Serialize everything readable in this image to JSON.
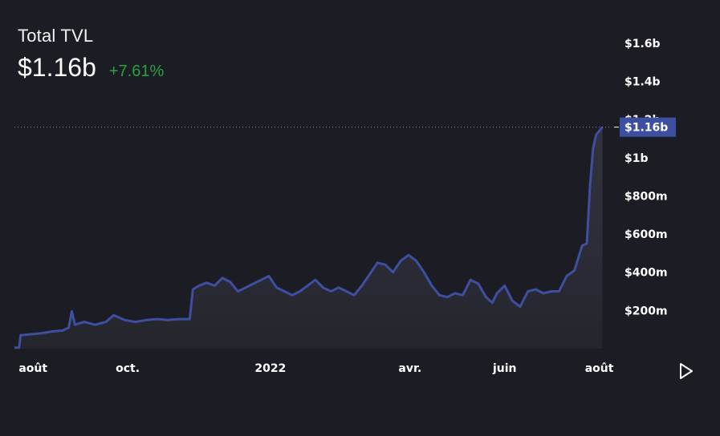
{
  "header": {
    "title": "Total TVL",
    "value": "$1.16b",
    "change": "+7.61%"
  },
  "colors": {
    "background": "#1c1d24",
    "line": "#3d4fa0",
    "change_positive": "#27a141",
    "crosshair_label_bg": "#3d4fa0"
  },
  "controls": {
    "play_icon": "play-icon"
  },
  "chart_data": {
    "type": "area",
    "title": "Total TVL",
    "xlabel": "",
    "ylabel": "",
    "ylim": [
      0,
      1700000000
    ],
    "yticks": [
      {
        "value": 200000000,
        "label": "$200m"
      },
      {
        "value": 400000000,
        "label": "$400m"
      },
      {
        "value": 600000000,
        "label": "$600m"
      },
      {
        "value": 800000000,
        "label": "$800m"
      },
      {
        "value": 1000000000,
        "label": "$1b"
      },
      {
        "value": 1200000000,
        "label": "$1.2b"
      },
      {
        "value": 1400000000,
        "label": "$1.4b"
      },
      {
        "value": 1600000000,
        "label": "$1.6b"
      }
    ],
    "xlim": [
      "2021-07-20",
      "2022-08-10"
    ],
    "xticks": [
      {
        "date": "2021-08-01",
        "label": "août"
      },
      {
        "date": "2021-10-01",
        "label": "oct."
      },
      {
        "date": "2022-01-01",
        "label": "2022"
      },
      {
        "date": "2022-04-01",
        "label": "avr."
      },
      {
        "date": "2022-06-01",
        "label": "juin"
      },
      {
        "date": "2022-08-01",
        "label": "août"
      }
    ],
    "current_value": 1160000000,
    "current_label": "$1.16b",
    "grid": false,
    "series": [
      {
        "points": [
          [
            "2021-07-20",
            5000000
          ],
          [
            "2021-07-23",
            5000000
          ],
          [
            "2021-07-24",
            70000000
          ],
          [
            "2021-07-30",
            75000000
          ],
          [
            "2021-08-06",
            80000000
          ],
          [
            "2021-08-13",
            90000000
          ],
          [
            "2021-08-20",
            95000000
          ],
          [
            "2021-08-24",
            110000000
          ],
          [
            "2021-08-26",
            195000000
          ],
          [
            "2021-08-28",
            125000000
          ],
          [
            "2021-09-03",
            140000000
          ],
          [
            "2021-09-10",
            125000000
          ],
          [
            "2021-09-17",
            140000000
          ],
          [
            "2021-09-22",
            175000000
          ],
          [
            "2021-09-29",
            150000000
          ],
          [
            "2021-10-06",
            140000000
          ],
          [
            "2021-10-13",
            150000000
          ],
          [
            "2021-10-20",
            155000000
          ],
          [
            "2021-10-27",
            150000000
          ],
          [
            "2021-11-03",
            155000000
          ],
          [
            "2021-11-10",
            155000000
          ],
          [
            "2021-11-12",
            310000000
          ],
          [
            "2021-11-16",
            330000000
          ],
          [
            "2021-11-21",
            345000000
          ],
          [
            "2021-11-26",
            330000000
          ],
          [
            "2021-12-01",
            370000000
          ],
          [
            "2021-12-06",
            350000000
          ],
          [
            "2021-12-11",
            300000000
          ],
          [
            "2021-12-16",
            320000000
          ],
          [
            "2021-12-21",
            340000000
          ],
          [
            "2021-12-26",
            360000000
          ],
          [
            "2021-12-31",
            380000000
          ],
          [
            "2022-01-05",
            320000000
          ],
          [
            "2022-01-10",
            300000000
          ],
          [
            "2022-01-15",
            280000000
          ],
          [
            "2022-01-20",
            300000000
          ],
          [
            "2022-01-25",
            330000000
          ],
          [
            "2022-01-30",
            360000000
          ],
          [
            "2022-02-04",
            320000000
          ],
          [
            "2022-02-09",
            300000000
          ],
          [
            "2022-02-14",
            320000000
          ],
          [
            "2022-02-19",
            300000000
          ],
          [
            "2022-02-24",
            280000000
          ],
          [
            "2022-03-01",
            330000000
          ],
          [
            "2022-03-06",
            390000000
          ],
          [
            "2022-03-11",
            450000000
          ],
          [
            "2022-03-16",
            440000000
          ],
          [
            "2022-03-21",
            400000000
          ],
          [
            "2022-03-26",
            460000000
          ],
          [
            "2022-03-31",
            490000000
          ],
          [
            "2022-04-05",
            460000000
          ],
          [
            "2022-04-10",
            400000000
          ],
          [
            "2022-04-15",
            330000000
          ],
          [
            "2022-04-20",
            280000000
          ],
          [
            "2022-04-25",
            270000000
          ],
          [
            "2022-04-30",
            290000000
          ],
          [
            "2022-05-05",
            280000000
          ],
          [
            "2022-05-10",
            360000000
          ],
          [
            "2022-05-15",
            340000000
          ],
          [
            "2022-05-20",
            270000000
          ],
          [
            "2022-05-24",
            240000000
          ],
          [
            "2022-05-27",
            290000000
          ],
          [
            "2022-06-01",
            330000000
          ],
          [
            "2022-06-06",
            250000000
          ],
          [
            "2022-06-11",
            220000000
          ],
          [
            "2022-06-16",
            300000000
          ],
          [
            "2022-06-21",
            310000000
          ],
          [
            "2022-06-26",
            290000000
          ],
          [
            "2022-07-01",
            300000000
          ],
          [
            "2022-07-06",
            300000000
          ],
          [
            "2022-07-11",
            380000000
          ],
          [
            "2022-07-16",
            410000000
          ],
          [
            "2022-07-21",
            540000000
          ],
          [
            "2022-07-24",
            550000000
          ],
          [
            "2022-07-26",
            850000000
          ],
          [
            "2022-07-28",
            1050000000
          ],
          [
            "2022-07-30",
            1120000000
          ],
          [
            "2022-08-01",
            1140000000
          ],
          [
            "2022-08-03",
            1160000000
          ]
        ]
      }
    ]
  }
}
